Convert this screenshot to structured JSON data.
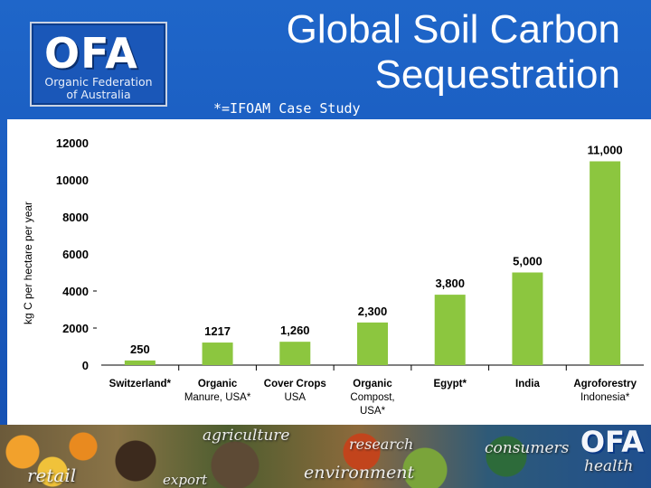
{
  "logo": {
    "mark": "OFA",
    "name_line1": "Organic Federation",
    "name_line2": "of Australia"
  },
  "title_line1": "Global Soil Carbon",
  "title_line2": "Sequestration",
  "subtitle": "*=IFOAM Case Study",
  "footer": {
    "words": [
      "agriculture",
      "research",
      "consumers",
      "retail",
      "environment",
      "export",
      "health"
    ],
    "logo": "OFA"
  },
  "colors": {
    "bar": "#8cc63f",
    "background": "#1a5cc0",
    "text": "#000000"
  },
  "chart_data": {
    "type": "bar",
    "ylabel": "kg C per hectare per year",
    "ylim": [
      0,
      12000
    ],
    "yticks": [
      0,
      2000,
      4000,
      6000,
      8000,
      10000,
      12000
    ],
    "grid": false,
    "categories": [
      [
        "Switzerland*"
      ],
      [
        "Organic",
        "Manure, USA*"
      ],
      [
        "Cover Crops",
        "USA"
      ],
      [
        "Organic",
        "Compost,",
        "USA*"
      ],
      [
        "Egypt*"
      ],
      [
        "India"
      ],
      [
        "Agroforestry",
        "Indonesia*"
      ]
    ],
    "values": [
      250,
      1217,
      1260,
      2300,
      3800,
      5000,
      11000
    ],
    "data_labels": [
      "250",
      "1217",
      "1,260",
      "2,300",
      "3,800",
      "5,000",
      "11,000"
    ]
  }
}
